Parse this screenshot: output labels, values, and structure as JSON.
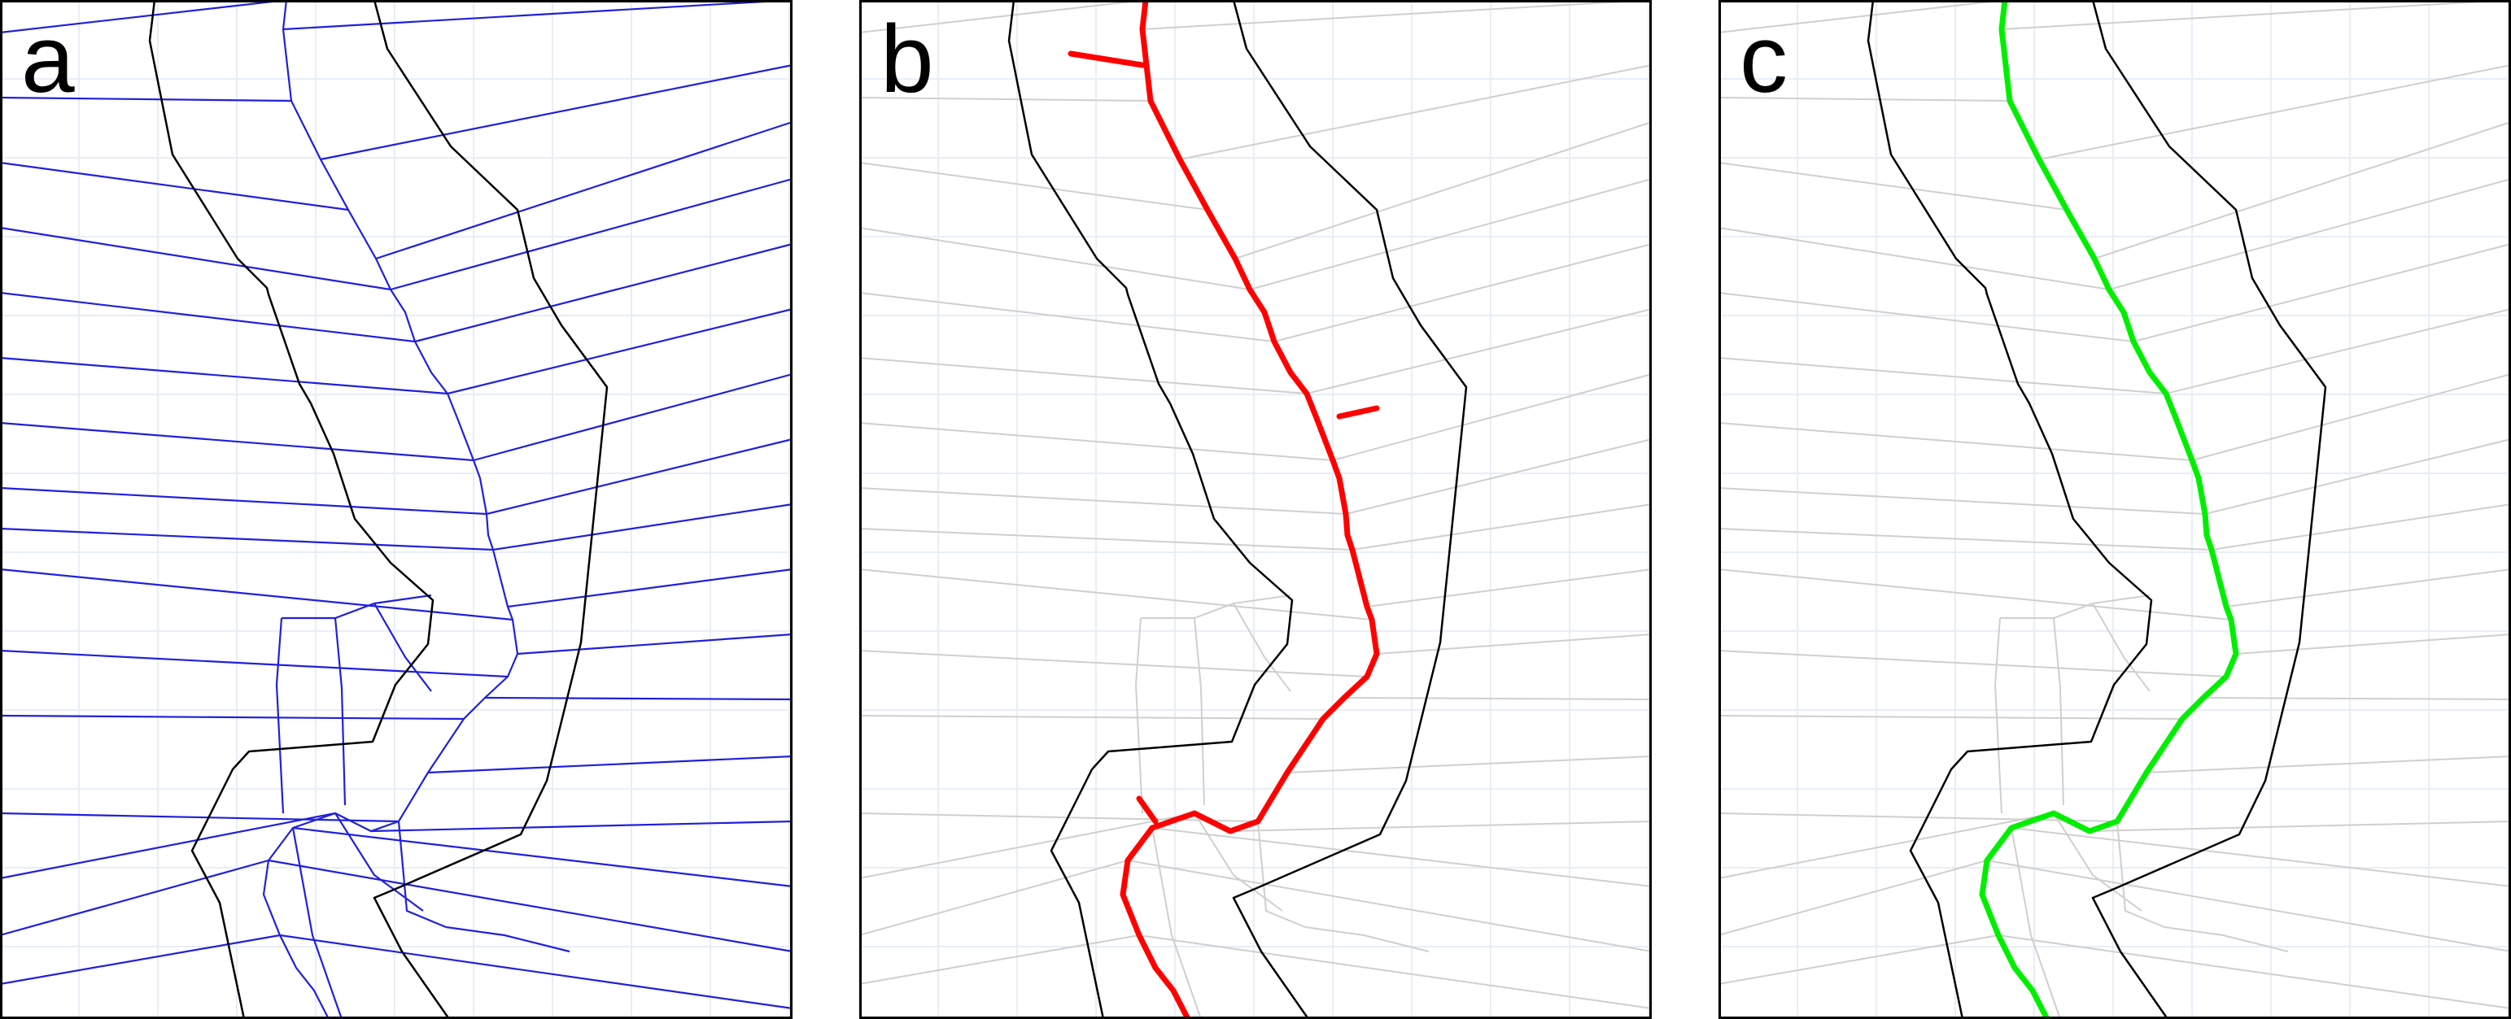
{
  "panels": [
    {
      "label": "a",
      "mode": "voronoi"
    },
    {
      "label": "b",
      "mode": "skeleton"
    },
    {
      "label": "c",
      "mode": "pruned"
    }
  ],
  "colors": {
    "background": "#ffffff",
    "grid": "#e8eef8",
    "boundary": "#000000",
    "voronoi_active": "#2020dd",
    "voronoi_faded": "#cfcfcf",
    "skeleton": "#ff0000",
    "pruned": "#00ee00",
    "frame": "#000000"
  }
}
